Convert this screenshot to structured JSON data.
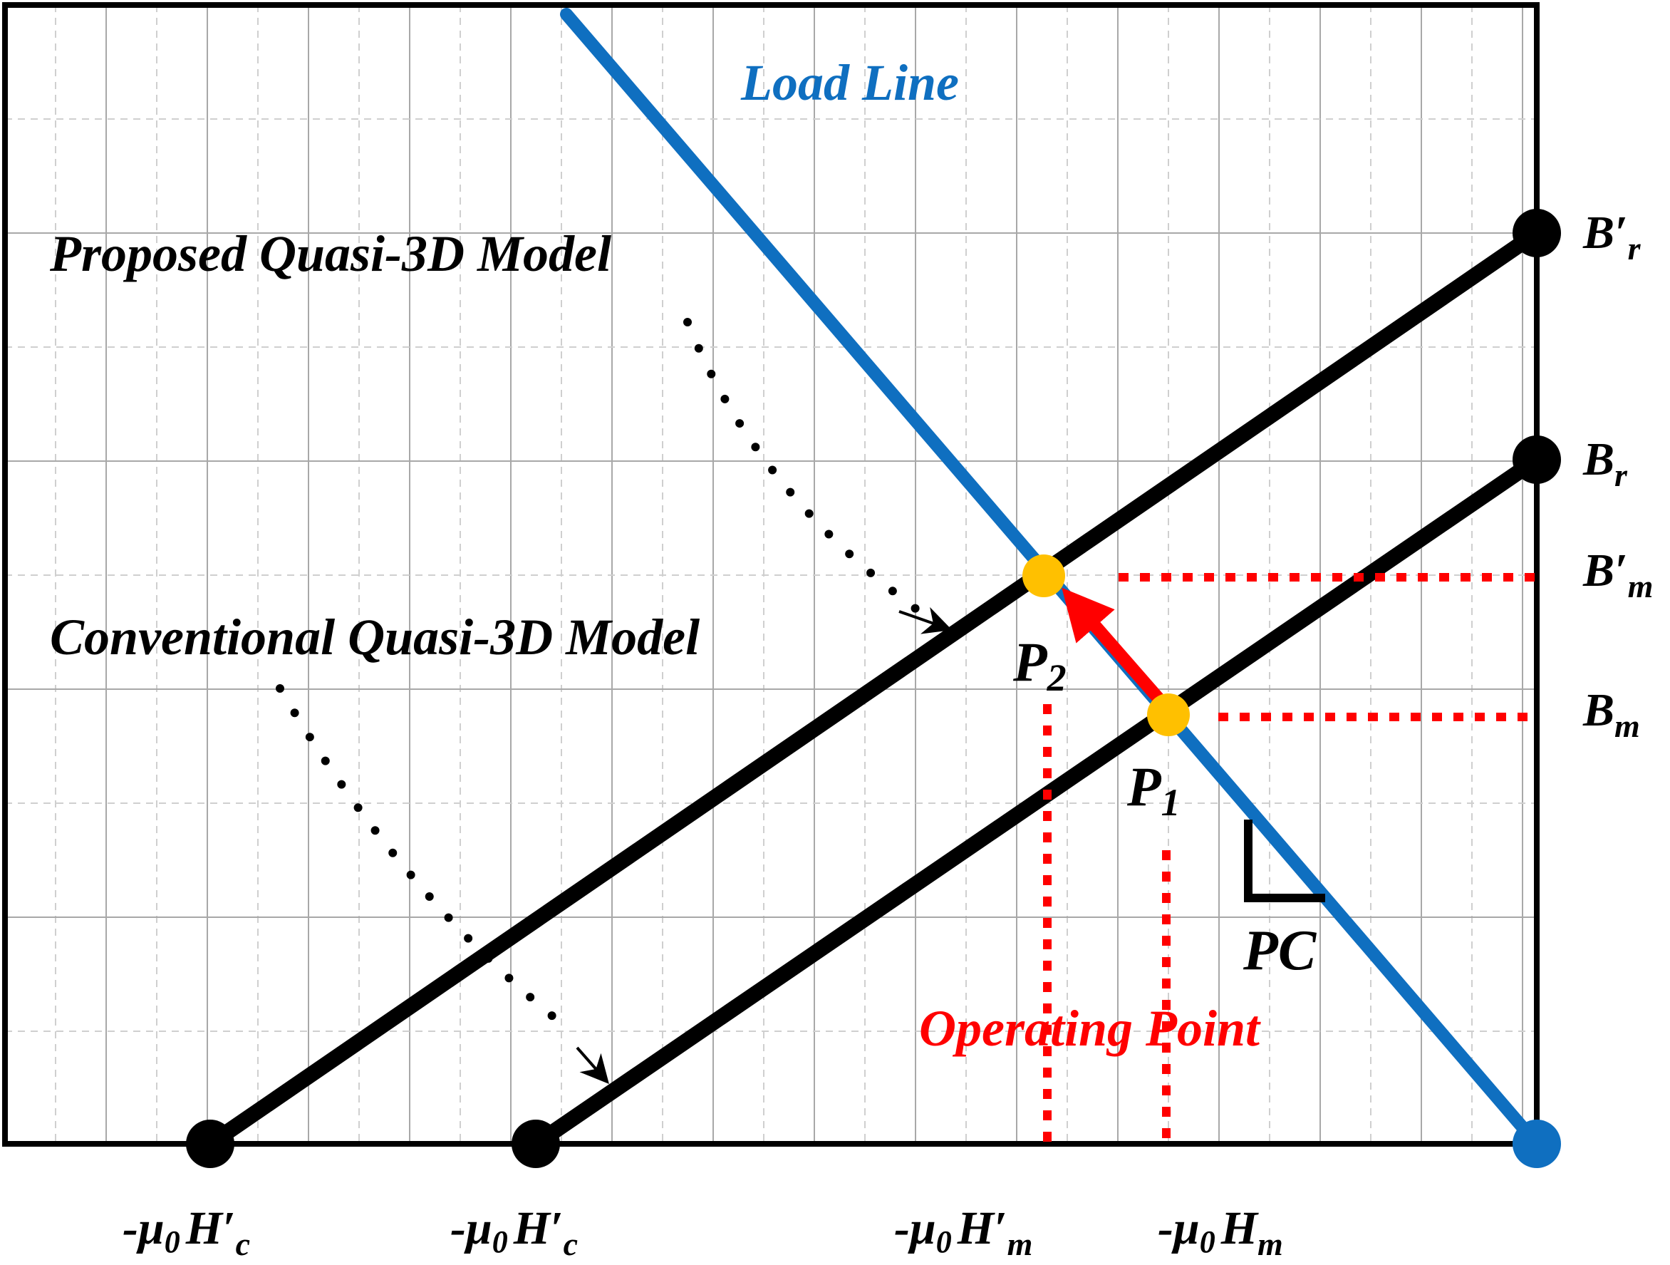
{
  "labels": {
    "load_line": "Load Line",
    "proposed_model": "Proposed Quasi-3D Model",
    "conventional_model": "Conventional Quasi-3D Model",
    "operating_point": "Operating Point",
    "pc": "PC",
    "p1_letter": "P",
    "p1_sub": "1",
    "p2_letter": "P",
    "p2_sub": "2",
    "br_prime_letter": "B′",
    "br_prime_sub": "r",
    "br_letter": "B",
    "br_sub": "r",
    "bm_prime_letter": "B′",
    "bm_prime_sub": "m",
    "bm_letter": "B",
    "bm_sub": "m",
    "hc_prime_1_prefix": "-μ",
    "hc_prime_1_zero": "0",
    "hc_prime_1_letter": "H′",
    "hc_prime_1_sub": "c",
    "hc_prime_2_prefix": "-μ",
    "hc_prime_2_zero": "0",
    "hc_prime_2_letter": "H′",
    "hc_prime_2_sub": "c",
    "hm_prime_prefix": "-μ",
    "hm_prime_zero": "0",
    "hm_prime_letter": "H′",
    "hm_prime_sub": "m",
    "hm_prefix": "-μ",
    "hm_zero": "0",
    "hm_letter": "H",
    "hm_sub": "m"
  },
  "colors": {
    "load_line": "#0f6fc0",
    "operating_point": "#ff0000",
    "marker_yellow": "#ffc000",
    "curve": "#000000",
    "grid": "#c0c0c0"
  }
}
